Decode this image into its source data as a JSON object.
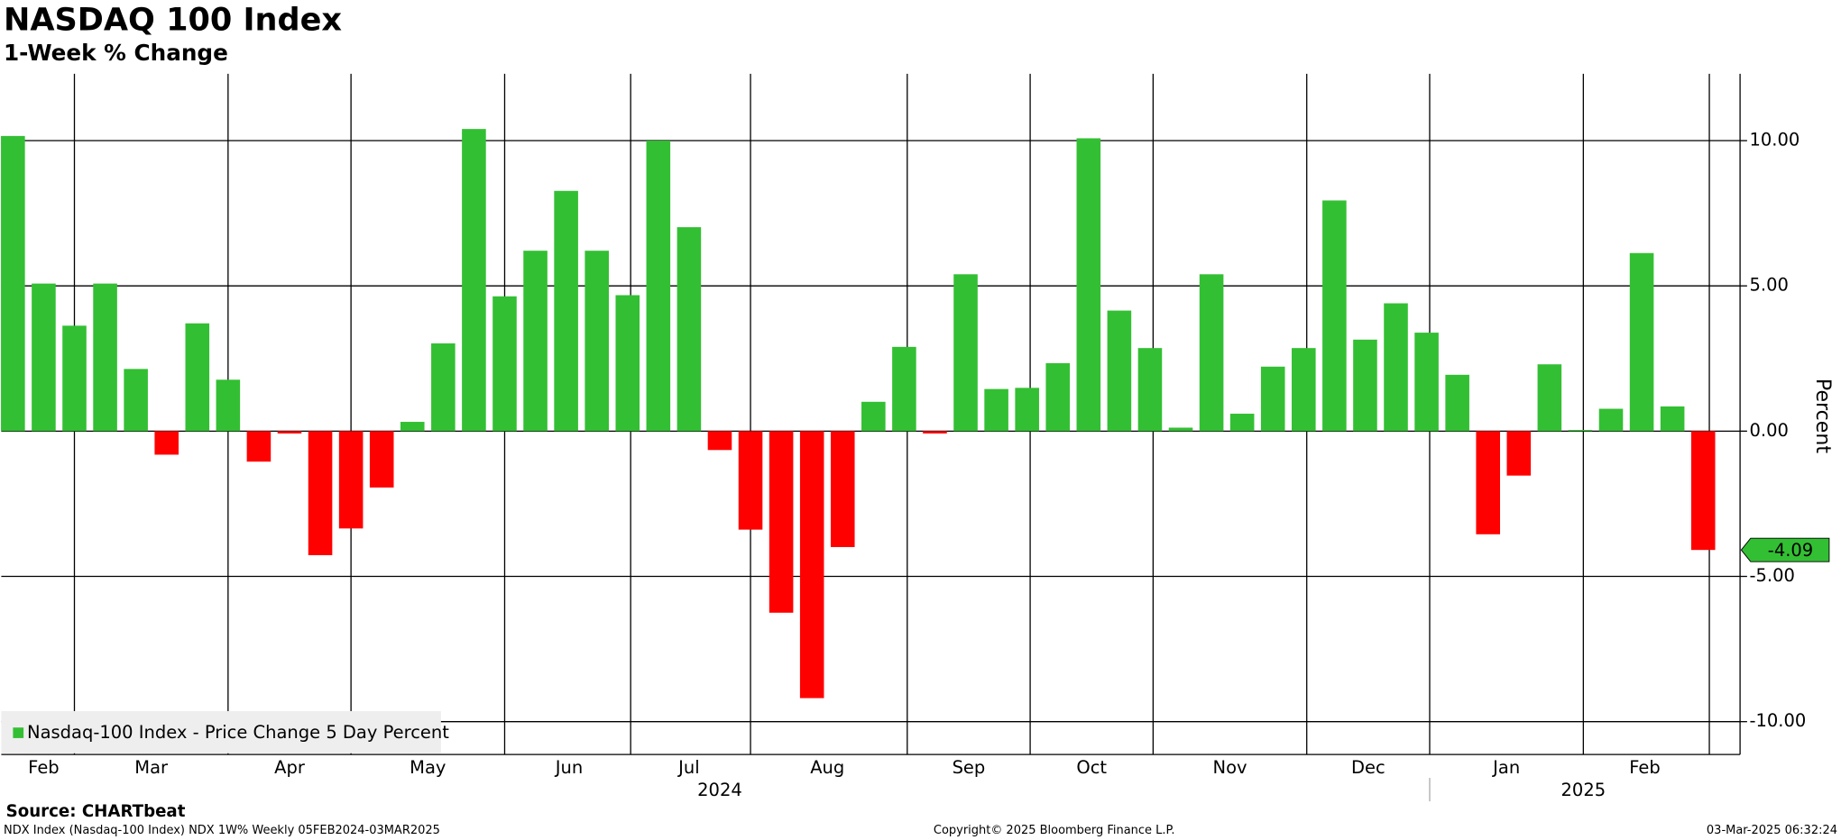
{
  "chart_data": {
    "type": "bar",
    "title": "NASDAQ 100 Index",
    "subtitle": "1-Week % Change",
    "y_label": "Percent",
    "source": "Source: CHARTbeat",
    "footer_left": "NDX Index (Nasdaq-100 Index) NDX 1W% Weekly 05FEB2024-03MAR2025",
    "footer_center": "Copyright© 2025 Bloomberg Finance L.P.",
    "footer_right": "03-Mar-2025 06:32:24",
    "categories": [
      null,
      null,
      null,
      null,
      null,
      null,
      null,
      null,
      null,
      null,
      null,
      null,
      null,
      null,
      null,
      null,
      null,
      null,
      null,
      null,
      null,
      null,
      null,
      null,
      null,
      null,
      null,
      null,
      null,
      null,
      null,
      null,
      null,
      null,
      null,
      null,
      null,
      null,
      null,
      null,
      null,
      null,
      null,
      null,
      null,
      null,
      null,
      null,
      null,
      null,
      null,
      null,
      null,
      null,
      null,
      null
    ],
    "series": [
      {
        "name": "Nasdaq-100 Index - Price Change 5 Day Percent",
        "color": "#33bf33",
        "negative_color": "#ff0000",
        "values": [
          10.16,
          5.08,
          3.63,
          5.08,
          2.14,
          -0.81,
          3.71,
          1.77,
          -1.05,
          -0.08,
          -4.27,
          -3.35,
          -1.94,
          0.32,
          3.02,
          10.4,
          4.64,
          6.21,
          8.27,
          6.21,
          4.68,
          10.0,
          7.02,
          -0.65,
          -3.39,
          -6.25,
          -9.19,
          -3.99,
          1.01,
          2.9,
          -0.08,
          5.4,
          1.45,
          1.49,
          2.34,
          10.08,
          4.15,
          2.86,
          0.12,
          5.4,
          0.6,
          2.22,
          2.86,
          7.94,
          3.15,
          4.4,
          3.39,
          1.94,
          -3.55,
          -1.53,
          2.3,
          0.04,
          0.77,
          6.13,
          0.85,
          -4.09
        ]
      }
    ],
    "xlim": [
      -0.38,
      56.2
    ],
    "xticks": [
      {
        "value": 1.0,
        "label": "Feb"
      },
      {
        "value": 4.5,
        "label": "Mar"
      },
      {
        "value": 9.0,
        "label": "Apr"
      },
      {
        "value": 13.5,
        "label": "May"
      },
      {
        "value": 18.1,
        "label": "Jun"
      },
      {
        "value": 22.0,
        "label": "Jul"
      },
      {
        "value": 26.5,
        "label": "Aug"
      },
      {
        "value": 31.1,
        "label": "Sep"
      },
      {
        "value": 35.1,
        "label": "Oct"
      },
      {
        "value": 39.6,
        "label": "Nov"
      },
      {
        "value": 44.1,
        "label": "Dec"
      },
      {
        "value": 48.6,
        "label": "Jan"
      },
      {
        "value": 53.1,
        "label": "Feb"
      }
    ],
    "month_boundaries": [
      2.0,
      7.0,
      11.0,
      16.0,
      20.1,
      24.0,
      29.1,
      33.1,
      37.1,
      42.1,
      46.1,
      51.1,
      55.2
    ],
    "year_ticks": [
      {
        "value": 23.0,
        "label": "2024"
      },
      {
        "value": 51.1,
        "label": "2025"
      }
    ],
    "year_boundaries": [
      46.1
    ],
    "ylim": [
      -11.13,
      12.3
    ],
    "yticks": [
      {
        "value": 10,
        "label": "10.00"
      },
      {
        "value": 5,
        "label": "5.00"
      },
      {
        "value": 0,
        "label": "0.00"
      },
      {
        "value": -5,
        "label": "-5.00"
      },
      {
        "value": -10,
        "label": "-10.00"
      }
    ],
    "grid": true,
    "legend": "lower left"
  }
}
